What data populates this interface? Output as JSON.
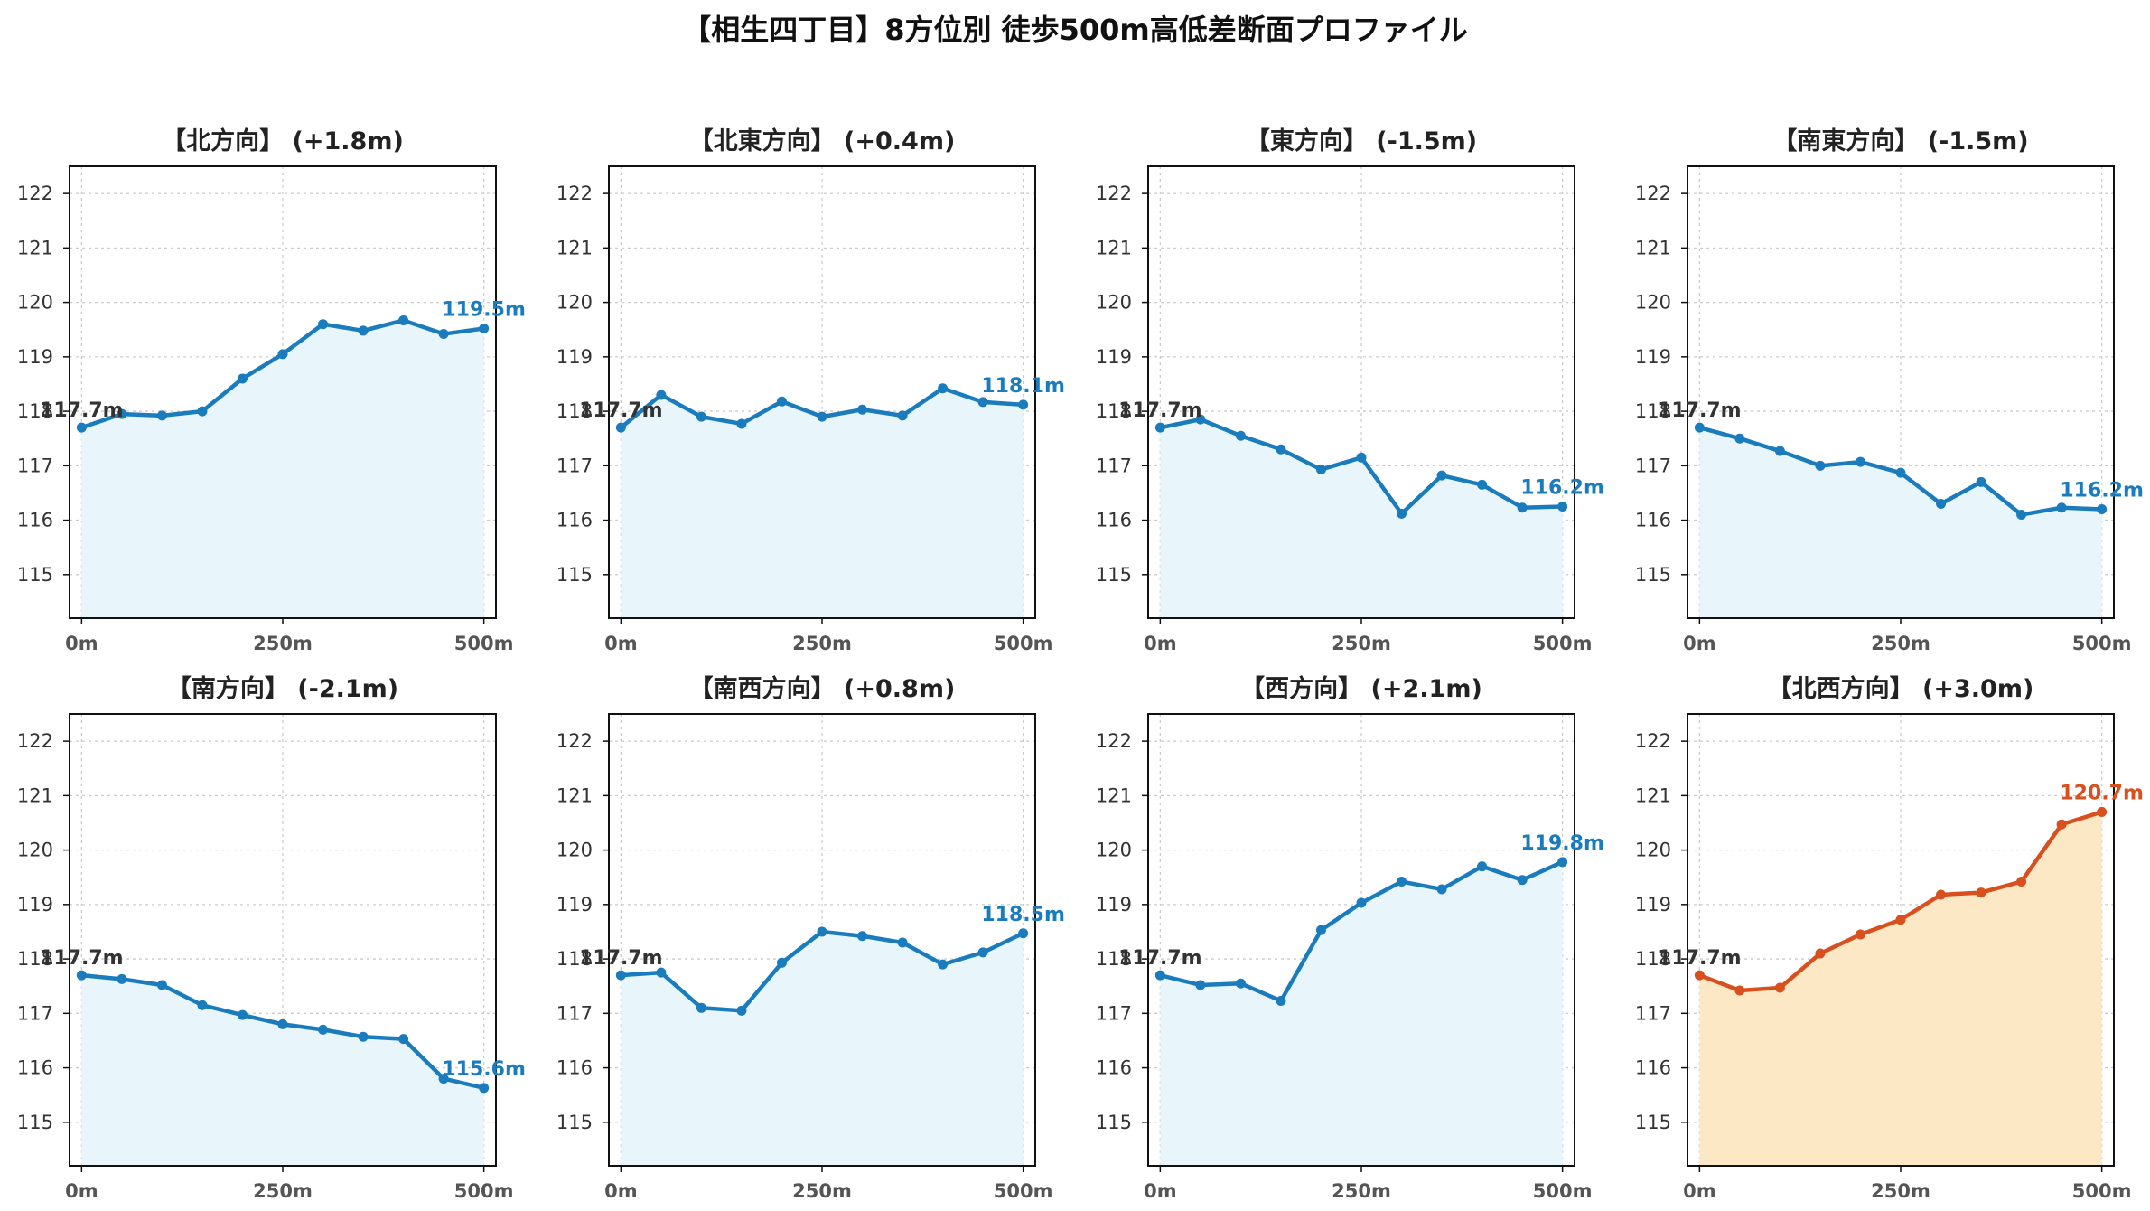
{
  "suptitle": "【相生四丁目】8方位別 徒歩500m高低差断面プロファイル",
  "colors": {
    "normal_line": "#1a7bbd",
    "normal_fill": "#e8f6fc",
    "highlight_line": "#d8501e",
    "highlight_fill": "#fde8c6",
    "grid": "#cccccc",
    "start_label": "#333333"
  },
  "chart_data": [
    {
      "type": "area",
      "title": "【北方向】 (+1.8m)",
      "start_label": "117.7m",
      "end_label": "119.5m",
      "highlight": false,
      "x": [
        0,
        50,
        100,
        150,
        200,
        250,
        300,
        350,
        400,
        450,
        500
      ],
      "values": [
        117.7,
        117.95,
        117.92,
        118.0,
        118.6,
        119.05,
        119.6,
        119.48,
        119.67,
        119.42,
        119.52
      ]
    },
    {
      "type": "area",
      "title": "【北東方向】 (+0.4m)",
      "start_label": "117.7m",
      "end_label": "118.1m",
      "highlight": false,
      "x": [
        0,
        50,
        100,
        150,
        200,
        250,
        300,
        350,
        400,
        450,
        500
      ],
      "values": [
        117.7,
        118.3,
        117.9,
        117.77,
        118.18,
        117.9,
        118.03,
        117.92,
        118.42,
        118.17,
        118.12
      ]
    },
    {
      "type": "area",
      "title": "【東方向】 (-1.5m)",
      "start_label": "117.7m",
      "end_label": "116.2m",
      "highlight": false,
      "x": [
        0,
        50,
        100,
        150,
        200,
        250,
        300,
        350,
        400,
        450,
        500
      ],
      "values": [
        117.7,
        117.85,
        117.55,
        117.3,
        116.93,
        117.15,
        116.12,
        116.82,
        116.65,
        116.23,
        116.25
      ]
    },
    {
      "type": "area",
      "title": "【南東方向】 (-1.5m)",
      "start_label": "117.7m",
      "end_label": "116.2m",
      "highlight": false,
      "x": [
        0,
        50,
        100,
        150,
        200,
        250,
        300,
        350,
        400,
        450,
        500
      ],
      "values": [
        117.7,
        117.5,
        117.27,
        117.0,
        117.07,
        116.87,
        116.3,
        116.7,
        116.1,
        116.23,
        116.2
      ]
    },
    {
      "type": "area",
      "title": "【南方向】 (-2.1m)",
      "start_label": "117.7m",
      "end_label": "115.6m",
      "highlight": false,
      "x": [
        0,
        50,
        100,
        150,
        200,
        250,
        300,
        350,
        400,
        450,
        500
      ],
      "values": [
        117.7,
        117.63,
        117.52,
        117.15,
        116.97,
        116.8,
        116.7,
        116.57,
        116.53,
        115.8,
        115.63
      ]
    },
    {
      "type": "area",
      "title": "【南西方向】 (+0.8m)",
      "start_label": "117.7m",
      "end_label": "118.5m",
      "highlight": false,
      "x": [
        0,
        50,
        100,
        150,
        200,
        250,
        300,
        350,
        400,
        450,
        500
      ],
      "values": [
        117.7,
        117.75,
        117.1,
        117.05,
        117.93,
        118.5,
        118.42,
        118.3,
        117.9,
        118.12,
        118.47
      ]
    },
    {
      "type": "area",
      "title": "【西方向】 (+2.1m)",
      "start_label": "117.7m",
      "end_label": "119.8m",
      "highlight": false,
      "x": [
        0,
        50,
        100,
        150,
        200,
        250,
        300,
        350,
        400,
        450,
        500
      ],
      "values": [
        117.7,
        117.52,
        117.55,
        117.23,
        118.53,
        119.03,
        119.42,
        119.28,
        119.7,
        119.45,
        119.78
      ]
    },
    {
      "type": "area",
      "title": "【北西方向】 (+3.0m)",
      "start_label": "117.7m",
      "end_label": "120.7m",
      "highlight": true,
      "x": [
        0,
        50,
        100,
        150,
        200,
        250,
        300,
        350,
        400,
        450,
        500
      ],
      "values": [
        117.7,
        117.42,
        117.47,
        118.1,
        118.45,
        118.72,
        119.18,
        119.22,
        119.42,
        120.47,
        120.7
      ]
    }
  ],
  "axes": {
    "ylim": [
      114.2,
      122.5
    ],
    "yticks": [
      115,
      116,
      117,
      118,
      119,
      120,
      121,
      122
    ],
    "ytick_labels": [
      "115",
      "116",
      "117",
      "118",
      "119",
      "120",
      "121",
      "122"
    ],
    "xlim": [
      -15,
      515
    ],
    "xticks": [
      0,
      250,
      500
    ],
    "xtick_labels": [
      "0m",
      "250m",
      "500m"
    ],
    "grid": true
  }
}
